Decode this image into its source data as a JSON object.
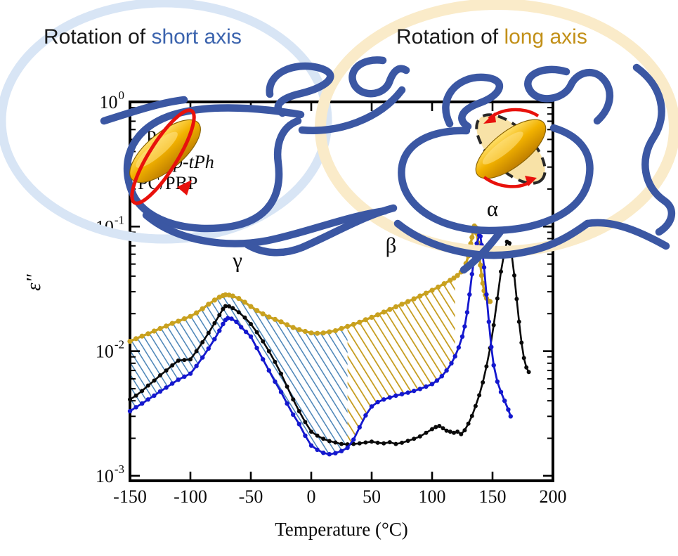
{
  "header": {
    "left": {
      "prefix": "Rotation of ",
      "highlight": "short axis"
    },
    "right": {
      "prefix": "Rotation of ",
      "highlight": "long axis"
    }
  },
  "colors": {
    "short_axis_text": "#3C64AE",
    "long_axis_text": "#C29018",
    "pc_curve": "#0a0a0a",
    "ptph_curve": "#1418CE",
    "blend_curve": "#C9A11F",
    "hatch_short": "#4E86B8",
    "hatch_long": "#C49A1A",
    "polymer_chain": "#3B57A3",
    "halo_short": "#D8E5F5",
    "halo_long": "#FAEBC9",
    "rotation_arrow": "#E81108"
  },
  "chart_data": {
    "type": "line",
    "title": "",
    "xlabel": "Temperature (°C)",
    "ylabel": "ε\"",
    "xlim": [
      -150,
      200
    ],
    "y_exponent_range": [
      -3,
      0
    ],
    "x_ticks": [
      -150,
      -100,
      -50,
      0,
      50,
      100,
      150,
      200
    ],
    "y_tick_exponents": [
      0,
      -1,
      -2,
      -3
    ],
    "grid": false,
    "legend_position": "upper-left-inside",
    "legend": [
      {
        "label": "PC",
        "color": "#0a0a0a"
      },
      {
        "label": "p-tPh",
        "color": "#1418CE"
      },
      {
        "label": "PC/PBP",
        "color": "#C9A11F"
      }
    ],
    "annotations": [
      {
        "text": "γ",
        "t": -61,
        "v": 0.047
      },
      {
        "text": "β",
        "t": 66,
        "v": 0.062
      },
      {
        "text": "α",
        "t": 150,
        "v": 0.122
      }
    ],
    "shaded_regions": [
      {
        "name": "short-axis-rotation-area",
        "top_series": "PC/PBP",
        "bottom_series": "p-tPh",
        "t_range": [
          -150,
          30
        ],
        "color": "#4E86B8"
      },
      {
        "name": "long-axis-rotation-area",
        "top_series": "PC/PBP",
        "bottom_series": "p-tPh",
        "t_range": [
          30,
          119
        ],
        "color": "#C49A1A"
      }
    ],
    "series": [
      {
        "name": "PC/PBP",
        "color": "#C9A11F",
        "marker_r": 3.6,
        "line_w": 3.4,
        "points": [
          [
            -150,
            0.012
          ],
          [
            -145,
            0.0126
          ],
          [
            -140,
            0.0132
          ],
          [
            -135,
            0.0138
          ],
          [
            -130,
            0.0145
          ],
          [
            -125,
            0.0152
          ],
          [
            -120,
            0.0159
          ],
          [
            -115,
            0.0167
          ],
          [
            -110,
            0.0174
          ],
          [
            -105,
            0.0182
          ],
          [
            -100,
            0.019
          ],
          [
            -95,
            0.0203
          ],
          [
            -90,
            0.0219
          ],
          [
            -85,
            0.0238
          ],
          [
            -80,
            0.0257
          ],
          [
            -76,
            0.0271
          ],
          [
            -73,
            0.0279
          ],
          [
            -71,
            0.0283
          ],
          [
            -68,
            0.0282
          ],
          [
            -65,
            0.0277
          ],
          [
            -60,
            0.0265
          ],
          [
            -55,
            0.0247
          ],
          [
            -50,
            0.0228
          ],
          [
            -45,
            0.0212
          ],
          [
            -40,
            0.0199
          ],
          [
            -35,
            0.0188
          ],
          [
            -30,
            0.018
          ],
          [
            -25,
            0.0172
          ],
          [
            -20,
            0.0163
          ],
          [
            -15,
            0.0155
          ],
          [
            -10,
            0.0149
          ],
          [
            -5,
            0.0144
          ],
          [
            0,
            0.014
          ],
          [
            5,
            0.0139
          ],
          [
            10,
            0.014
          ],
          [
            15,
            0.0143
          ],
          [
            20,
            0.0146
          ],
          [
            25,
            0.0152
          ],
          [
            30,
            0.0158
          ],
          [
            35,
            0.0164
          ],
          [
            40,
            0.0171
          ],
          [
            45,
            0.0179
          ],
          [
            50,
            0.0187
          ],
          [
            55,
            0.0196
          ],
          [
            60,
            0.0206
          ],
          [
            65,
            0.0216
          ],
          [
            70,
            0.0227
          ],
          [
            75,
            0.0238
          ],
          [
            80,
            0.025
          ],
          [
            85,
            0.0263
          ],
          [
            90,
            0.0277
          ],
          [
            95,
            0.0292
          ],
          [
            100,
            0.0308
          ],
          [
            105,
            0.0327
          ],
          [
            110,
            0.0348
          ],
          [
            115,
            0.0371
          ],
          [
            118,
            0.0386
          ],
          [
            121,
            0.0405
          ],
          [
            124,
            0.0432
          ],
          [
            126,
            0.0458
          ],
          [
            128,
            0.0505
          ],
          [
            130,
            0.058
          ],
          [
            131,
            0.065
          ],
          [
            132,
            0.073
          ],
          [
            133,
            0.082
          ],
          [
            134,
            0.092
          ],
          [
            135,
            0.101
          ],
          [
            136,
            0.0985
          ],
          [
            137,
            0.088
          ],
          [
            138,
            0.074
          ],
          [
            139,
            0.06
          ],
          [
            140,
            0.049
          ],
          [
            141,
            0.0405
          ],
          [
            142,
            0.035
          ],
          [
            143,
            0.0305
          ],
          [
            144,
            0.0282
          ],
          [
            145,
            0.0266
          ],
          [
            147,
            0.0252
          ],
          [
            148,
            0.025
          ]
        ]
      },
      {
        "name": "PC",
        "color": "#0a0a0a",
        "marker_r": 3.0,
        "line_w": 2.6,
        "points": [
          [
            -150,
            0.0041
          ],
          [
            -145,
            0.0044
          ],
          [
            -140,
            0.0048
          ],
          [
            -135,
            0.0053
          ],
          [
            -130,
            0.0058
          ],
          [
            -125,
            0.0064
          ],
          [
            -120,
            0.007
          ],
          [
            -115,
            0.0077
          ],
          [
            -110,
            0.0084
          ],
          [
            -105,
            0.0085
          ],
          [
            -100,
            0.0086
          ],
          [
            -95,
            0.01
          ],
          [
            -90,
            0.0118
          ],
          [
            -85,
            0.014
          ],
          [
            -80,
            0.0168
          ],
          [
            -76,
            0.0195
          ],
          [
            -73,
            0.0218
          ],
          [
            -71,
            0.023
          ],
          [
            -68,
            0.0229
          ],
          [
            -65,
            0.0222
          ],
          [
            -60,
            0.0205
          ],
          [
            -55,
            0.0186
          ],
          [
            -50,
            0.0165
          ],
          [
            -45,
            0.0142
          ],
          [
            -40,
            0.012
          ],
          [
            -35,
            0.01
          ],
          [
            -30,
            0.0082
          ],
          [
            -25,
            0.0066
          ],
          [
            -20,
            0.0052
          ],
          [
            -15,
            0.0041
          ],
          [
            -10,
            0.0033
          ],
          [
            -5,
            0.0027
          ],
          [
            0,
            0.00226
          ],
          [
            5,
            0.0021
          ],
          [
            10,
            0.00198
          ],
          [
            15,
            0.0019
          ],
          [
            20,
            0.00185
          ],
          [
            25,
            0.0018
          ],
          [
            30,
            0.00179
          ],
          [
            35,
            0.0018
          ],
          [
            40,
            0.00182
          ],
          [
            45,
            0.00185
          ],
          [
            50,
            0.00188
          ],
          [
            55,
            0.00184
          ],
          [
            60,
            0.00182
          ],
          [
            65,
            0.00186
          ],
          [
            70,
            0.0018
          ],
          [
            75,
            0.00184
          ],
          [
            80,
            0.00191
          ],
          [
            85,
            0.00198
          ],
          [
            90,
            0.00207
          ],
          [
            95,
            0.00221
          ],
          [
            100,
            0.00237
          ],
          [
            103,
            0.00246
          ],
          [
            106,
            0.00251
          ],
          [
            109,
            0.00241
          ],
          [
            112,
            0.0023
          ],
          [
            115,
            0.00226
          ],
          [
            118,
            0.00221
          ],
          [
            121,
            0.00226
          ],
          [
            124,
            0.00216
          ],
          [
            127,
            0.00232
          ],
          [
            130,
            0.00262
          ],
          [
            133,
            0.00302
          ],
          [
            136,
            0.00363
          ],
          [
            139,
            0.00443
          ],
          [
            142,
            0.00562
          ],
          [
            145,
            0.00755
          ],
          [
            148,
            0.0106
          ],
          [
            151,
            0.0162
          ],
          [
            154,
            0.0265
          ],
          [
            157,
            0.0435
          ],
          [
            160,
            0.0635
          ],
          [
            162,
            0.0755
          ],
          [
            164,
            0.0735
          ],
          [
            166,
            0.0585
          ],
          [
            168,
            0.0405
          ],
          [
            170,
            0.0262
          ],
          [
            172,
            0.0172
          ],
          [
            174,
            0.0117
          ],
          [
            176,
            0.0088
          ],
          [
            178,
            0.0074
          ],
          [
            180,
            0.0068
          ]
        ]
      },
      {
        "name": "p-tPh",
        "color": "#1418CE",
        "marker_r": 3.2,
        "line_w": 2.8,
        "points": [
          [
            -150,
            0.0033
          ],
          [
            -145,
            0.00355
          ],
          [
            -140,
            0.0038
          ],
          [
            -135,
            0.0041
          ],
          [
            -130,
            0.0044
          ],
          [
            -125,
            0.00475
          ],
          [
            -120,
            0.0051
          ],
          [
            -115,
            0.0055
          ],
          [
            -110,
            0.0059
          ],
          [
            -105,
            0.00625
          ],
          [
            -100,
            0.0066
          ],
          [
            -95,
            0.0076
          ],
          [
            -90,
            0.0089
          ],
          [
            -85,
            0.0105
          ],
          [
            -80,
            0.0125
          ],
          [
            -76,
            0.0146
          ],
          [
            -73,
            0.0165
          ],
          [
            -71,
            0.0178
          ],
          [
            -69,
            0.0184
          ],
          [
            -66,
            0.0182
          ],
          [
            -62,
            0.0172
          ],
          [
            -58,
            0.0156
          ],
          [
            -54,
            0.0143
          ],
          [
            -50,
            0.0131
          ],
          [
            -45,
            0.0106
          ],
          [
            -40,
            0.0086
          ],
          [
            -35,
            0.007
          ],
          [
            -30,
            0.0057
          ],
          [
            -25,
            0.0047
          ],
          [
            -20,
            0.0038
          ],
          [
            -15,
            0.0031
          ],
          [
            -10,
            0.0026
          ],
          [
            -5,
            0.0021
          ],
          [
            0,
            0.00175
          ],
          [
            5,
            0.00162
          ],
          [
            10,
            0.00153
          ],
          [
            15,
            0.00149
          ],
          [
            20,
            0.00152
          ],
          [
            25,
            0.00158
          ],
          [
            30,
            0.00168
          ],
          [
            35,
            0.00195
          ],
          [
            40,
            0.00245
          ],
          [
            45,
            0.00305
          ],
          [
            50,
            0.0036
          ],
          [
            55,
            0.0039
          ],
          [
            60,
            0.0041
          ],
          [
            65,
            0.00425
          ],
          [
            70,
            0.0044
          ],
          [
            75,
            0.00452
          ],
          [
            80,
            0.00465
          ],
          [
            85,
            0.0048
          ],
          [
            90,
            0.00498
          ],
          [
            95,
            0.0052
          ],
          [
            100,
            0.00545
          ],
          [
            104,
            0.0058
          ],
          [
            108,
            0.0063
          ],
          [
            112,
            0.007
          ],
          [
            116,
            0.008
          ],
          [
            119,
            0.0091
          ],
          [
            122,
            0.0107
          ],
          [
            125,
            0.0131
          ],
          [
            127,
            0.0158
          ],
          [
            129,
            0.0205
          ],
          [
            131,
            0.0285
          ],
          [
            133,
            0.0415
          ],
          [
            135,
            0.057
          ],
          [
            137,
            0.073
          ],
          [
            139,
            0.085
          ],
          [
            140,
            0.0835
          ],
          [
            141,
            0.071
          ],
          [
            143,
            0.047
          ],
          [
            145,
            0.0285
          ],
          [
            147,
            0.0172
          ],
          [
            149,
            0.0108
          ],
          [
            151,
            0.0077
          ],
          [
            154,
            0.0057
          ],
          [
            157,
            0.0047
          ],
          [
            160,
            0.004
          ],
          [
            163,
            0.0034
          ],
          [
            165,
            0.003
          ]
        ]
      }
    ]
  }
}
